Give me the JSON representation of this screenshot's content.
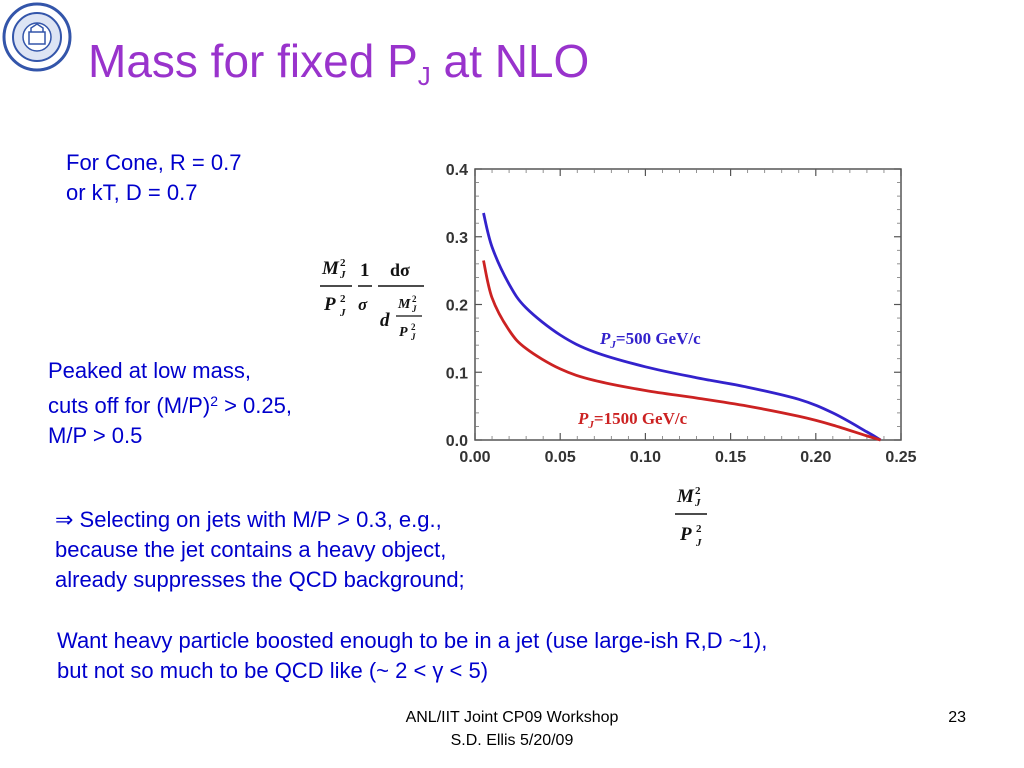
{
  "slide": {
    "title_main": "Mass for fixed P",
    "title_sub": "J",
    "title_end": " at NLO",
    "params": [
      "For Cone, R = 0.7",
      "or kT, D = 0.7"
    ],
    "peaked": {
      "line1": "Peaked at low mass,",
      "line2_pre": "cuts off for (M/P)",
      "line2_sup": "2",
      "line2_post": " > 0.25,",
      "line3": "M/P > 0.5"
    },
    "bullet_lines": [
      "⇒ Selecting on jets with M/P > 0.3, e.g.,",
      "because the jet contains a heavy object,",
      "already suppresses the QCD background;"
    ],
    "want_lines": [
      "Want heavy particle boosted enough to be in a jet (use large-ish R,D ~1),",
      "but not so much to be QCD like (~ 2 < γ < 5)"
    ],
    "footer": {
      "line1": "ANL/IIT Joint CP09 Workshop",
      "line2": "S.D. Ellis 5/20/09",
      "page": "23"
    }
  },
  "chart_data": {
    "type": "line",
    "xlim": [
      0,
      0.25
    ],
    "ylim": [
      0,
      0.4
    ],
    "x_ticks": [
      "0.00",
      "0.05",
      "0.10",
      "0.15",
      "0.20",
      "0.25"
    ],
    "y_ticks": [
      "0.0",
      "0.1",
      "0.2",
      "0.3",
      "0.4"
    ],
    "series": [
      {
        "name": "P_J=500 GeV/c",
        "color": "#3322cc",
        "x": [
          0.005,
          0.01,
          0.02,
          0.03,
          0.05,
          0.07,
          0.1,
          0.13,
          0.16,
          0.19,
          0.21,
          0.23,
          0.238
        ],
        "y": [
          0.335,
          0.285,
          0.23,
          0.195,
          0.155,
          0.13,
          0.108,
          0.092,
          0.078,
          0.06,
          0.04,
          0.012,
          0.0
        ]
      },
      {
        "name": "P_J=1500 GeV/c",
        "color": "#cc2222",
        "x": [
          0.005,
          0.01,
          0.02,
          0.03,
          0.05,
          0.07,
          0.1,
          0.13,
          0.16,
          0.19,
          0.21,
          0.23,
          0.238
        ],
        "y": [
          0.265,
          0.21,
          0.162,
          0.135,
          0.105,
          0.088,
          0.073,
          0.062,
          0.05,
          0.035,
          0.022,
          0.006,
          0.0
        ]
      }
    ]
  }
}
